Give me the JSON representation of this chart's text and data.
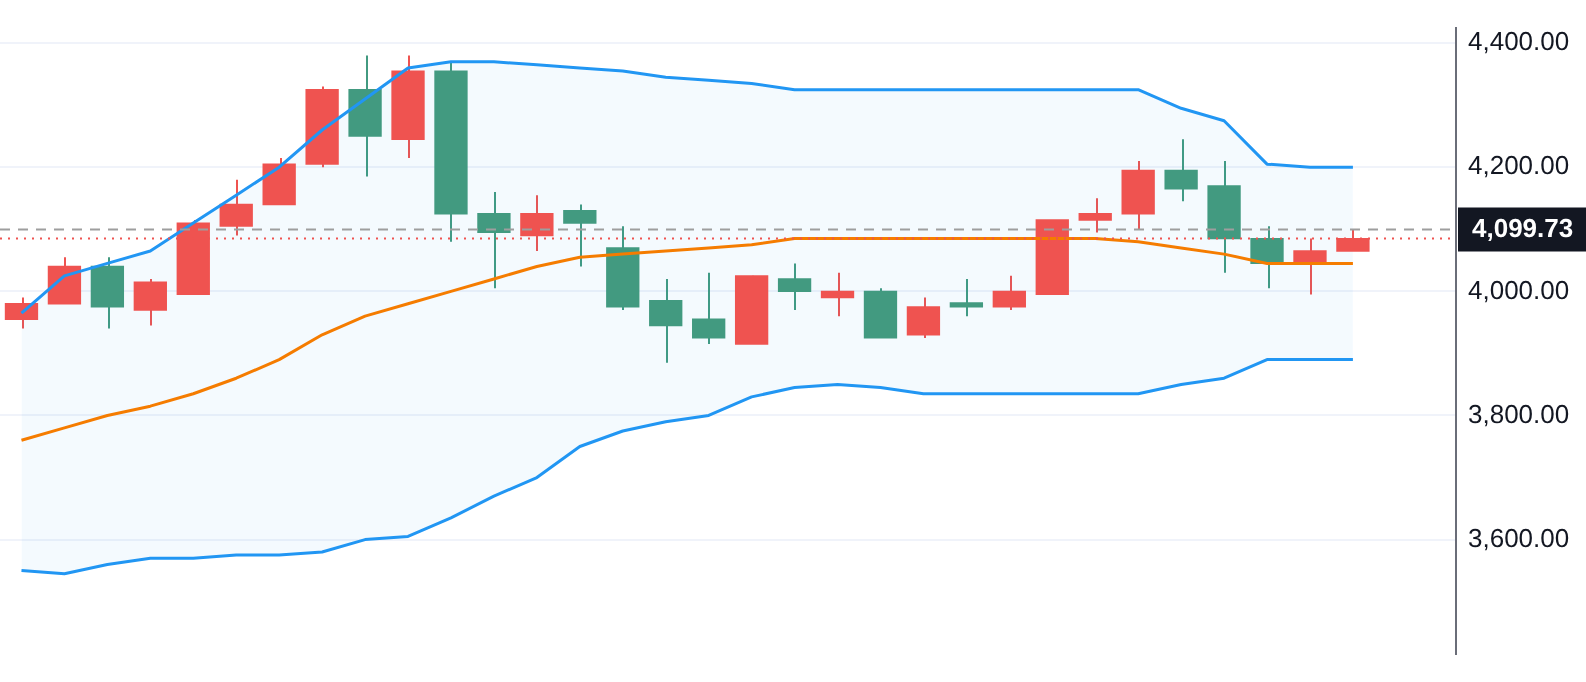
{
  "chart_data": {
    "type": "candlestick",
    "categories": [
      null,
      null,
      null,
      null,
      null,
      null,
      null,
      null,
      null,
      null,
      null,
      null,
      null,
      null,
      null,
      null,
      null,
      null,
      null,
      null,
      null,
      null,
      null,
      null,
      null,
      null,
      null,
      null,
      null,
      null,
      null,
      null
    ],
    "ohlc": [
      [
        3955,
        3990,
        3940,
        3980
      ],
      [
        3980,
        4055,
        3980,
        4040
      ],
      [
        4040,
        4055,
        3940,
        3975
      ],
      [
        3970,
        4020,
        3945,
        4015
      ],
      [
        3995,
        4115,
        3995,
        4110
      ],
      [
        4105,
        4180,
        4090,
        4140
      ],
      [
        4140,
        4215,
        4140,
        4205
      ],
      [
        4205,
        4330,
        4200,
        4325
      ],
      [
        4325,
        4380,
        4185,
        4250
      ],
      [
        4245,
        4380,
        4215,
        4355
      ],
      [
        4355,
        4370,
        4080,
        4125
      ],
      [
        4125,
        4160,
        4005,
        4095
      ],
      [
        4090,
        4155,
        4065,
        4125
      ],
      [
        4130,
        4140,
        4040,
        4110
      ],
      [
        4070,
        4105,
        3970,
        3975
      ],
      [
        3985,
        4020,
        3885,
        3945
      ],
      [
        3955,
        4030,
        3915,
        3925
      ],
      [
        3915,
        4025,
        3915,
        4025
      ],
      [
        4020,
        4045,
        3970,
        4000
      ],
      [
        3990,
        4030,
        3960,
        4000
      ],
      [
        4000,
        4005,
        3925,
        3925
      ],
      [
        3930,
        3990,
        3925,
        3975
      ],
      [
        3980,
        4020,
        3960,
        3975
      ],
      [
        3975,
        4025,
        3970,
        4000
      ],
      [
        3995,
        4115,
        3995,
        4115
      ],
      [
        4115,
        4150,
        4095,
        4125
      ],
      [
        4125,
        4210,
        4100,
        4195
      ],
      [
        4195,
        4245,
        4145,
        4165
      ],
      [
        4170,
        4210,
        4030,
        4085
      ],
      [
        4085,
        4105,
        4005,
        4045
      ],
      [
        4045,
        4085,
        3995,
        4065
      ],
      [
        4065,
        4100,
        4065,
        4085
      ]
    ],
    "colors": [
      "#ef5350",
      "#ef5350",
      "#429a80",
      "#ef5350",
      "#ef5350",
      "#ef5350",
      "#ef5350",
      "#ef5350",
      "#429a80",
      "#ef5350",
      "#429a80",
      "#429a80",
      "#ef5350",
      "#429a80",
      "#429a80",
      "#429a80",
      "#429a80",
      "#ef5350",
      "#429a80",
      "#ef5350",
      "#429a80",
      "#ef5350",
      "#429a80",
      "#ef5350",
      "#ef5350",
      "#ef5350",
      "#ef5350",
      "#429a80",
      "#429a80",
      "#429a80",
      "#ef5350",
      "#ef5350"
    ],
    "series": [
      {
        "type": "line",
        "color": "#2196f3",
        "values": [
          3965,
          4025,
          4045,
          4065,
          4110,
          4155,
          4200,
          4260,
          4310,
          4360,
          4370,
          4370,
          4365,
          4360,
          4355,
          4345,
          4340,
          4335,
          4325,
          4325,
          4325,
          4325,
          4325,
          4325,
          4325,
          4325,
          4325,
          4295,
          4275,
          4205,
          4200,
          4200
        ]
      },
      {
        "type": "line",
        "color": "#f57c00",
        "values": [
          3760,
          3780,
          3800,
          3815,
          3835,
          3860,
          3890,
          3930,
          3960,
          3980,
          4000,
          4020,
          4040,
          4055,
          4060,
          4065,
          4070,
          4075,
          4085,
          4085,
          4085,
          4085,
          4085,
          4085,
          4085,
          4085,
          4080,
          4070,
          4060,
          4045,
          4045,
          4045
        ],
        "upper": [
          3965,
          4025,
          4045,
          4065,
          4110,
          4155,
          4200,
          4260,
          4310,
          4360,
          4370,
          4370,
          4365,
          4360,
          4355,
          4345,
          4340,
          4335,
          4325,
          4325,
          4325,
          4325,
          4325,
          4325,
          4325,
          4325,
          4325,
          4295,
          4275,
          4205,
          4200,
          4200
        ],
        "lower": [
          3550,
          3545,
          3560,
          3570,
          3570,
          3575,
          3575,
          3580,
          3600,
          3605,
          3635,
          3670,
          3700,
          3750,
          3775,
          3790,
          3800,
          3830,
          3845,
          3850,
          3845,
          3835,
          3835,
          3835,
          3835,
          3835,
          3835,
          3850,
          3860,
          3890,
          3890,
          3890
        ]
      },
      {
        "type": "line",
        "color": "#2196f3",
        "values": [
          3550,
          3545,
          3560,
          3570,
          3570,
          3575,
          3575,
          3580,
          3600,
          3605,
          3635,
          3670,
          3700,
          3750,
          3775,
          3790,
          3800,
          3830,
          3845,
          3850,
          3845,
          3835,
          3835,
          3835,
          3835,
          3835,
          3835,
          3850,
          3860,
          3890,
          3890,
          3890
        ]
      }
    ],
    "ylim": [
      3415,
      4425
    ],
    "yticks": [
      {
        "value": 3600,
        "label": "3,600.00"
      },
      {
        "value": 3800,
        "label": "3,800.00"
      },
      {
        "value": 4000,
        "label": "4,000.00"
      },
      {
        "value": 4200,
        "label": "4,200.00"
      },
      {
        "value": 4400,
        "label": "4,400.00"
      }
    ],
    "ref_lines": [
      {
        "axis": "y",
        "value": 4099.73,
        "label": "4,099.73",
        "color": "#9e9e9e",
        "line_style": "dashed"
      },
      {
        "axis": "y",
        "value": 4085,
        "color": "#ef5350",
        "line_style": "dotted"
      }
    ],
    "grid": "y",
    "legend": false,
    "tick_labels": "y"
  }
}
